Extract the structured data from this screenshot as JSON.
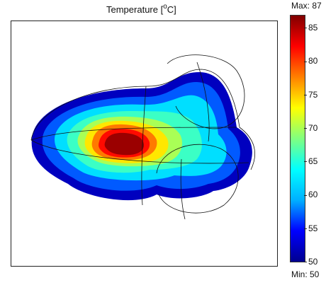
{
  "chart_data": {
    "type": "heatmap",
    "title_main": "Temperature [",
    "title_sup": "o",
    "title_end": "C]",
    "colorbar": {
      "min_label": "Min: 50",
      "max_label": "Max: 87",
      "min": 50,
      "max": 87,
      "ticks": [
        {
          "value": 85,
          "label": "85"
        },
        {
          "value": 80,
          "label": "80"
        },
        {
          "value": 75,
          "label": "75"
        },
        {
          "value": 70,
          "label": "70"
        },
        {
          "value": 65,
          "label": "65"
        },
        {
          "value": 60,
          "label": "60"
        },
        {
          "value": 55,
          "label": "55"
        },
        {
          "value": 50,
          "label": "50"
        }
      ],
      "colormap": [
        "#00008f",
        "#0000ff",
        "#00b0ff",
        "#00ffff",
        "#80ff80",
        "#ffff00",
        "#ff8000",
        "#ff0000",
        "#800000"
      ]
    },
    "contour_levels": [
      52,
      57,
      62,
      66,
      70,
      74,
      78,
      82,
      86
    ]
  }
}
